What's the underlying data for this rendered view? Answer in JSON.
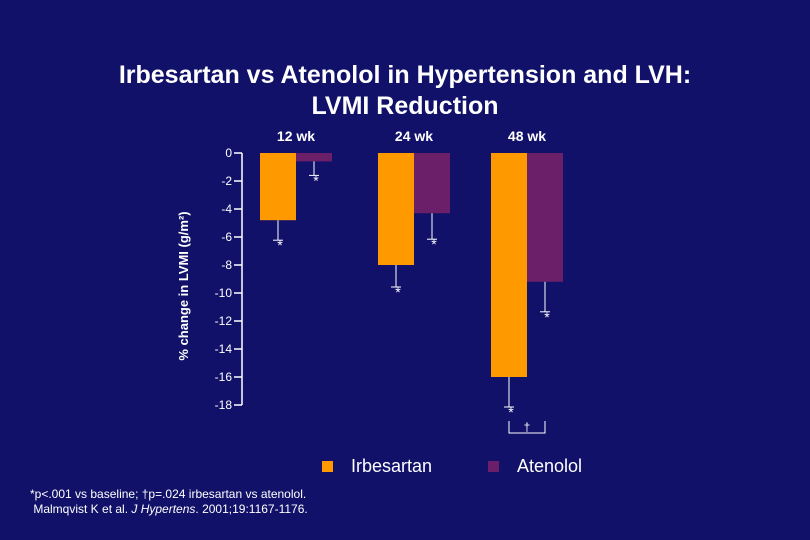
{
  "slide": {
    "title_line1": "Irbesartan vs Atenolol in Hypertension and LVH:",
    "title_line2": "LVMI Reduction"
  },
  "chart_data": {
    "type": "bar",
    "categories": [
      "12 wk",
      "24 wk",
      "48 wk"
    ],
    "series": [
      {
        "name": "Irbesartan",
        "color": "#ff9900",
        "values": [
          -4.8,
          -8.0,
          -16.0
        ]
      },
      {
        "name": "Atenolol",
        "color": "#6b1f68",
        "values": [
          -0.6,
          -4.3,
          -9.2
        ]
      }
    ],
    "significance": [
      [
        "*",
        "*"
      ],
      [
        "*",
        "*"
      ],
      [
        "*",
        "*"
      ]
    ],
    "comparison_marker": {
      "category": "48 wk",
      "symbol": "†"
    },
    "ylabel": "% change in LVMI (g/m²)",
    "xlabel": "",
    "ylim": [
      -18,
      0
    ],
    "yticks": [
      0,
      -2,
      -4,
      -6,
      -8,
      -10,
      -12,
      -14,
      -16,
      -18
    ],
    "legend_position": "bottom",
    "grid": false
  },
  "footnote": {
    "line1": "*p<.001 vs baseline; †p=.024 irbesartan vs atenolol.",
    "line2_authors": "Malmqvist K et al. ",
    "line2_journal": "J Hypertens",
    "line2_rest": ". 2001;19:1167-1176."
  },
  "colors": {
    "background": "#11116a",
    "irbesartan": "#ff9900",
    "atenolol": "#6b1f68",
    "axis": "#ffffff"
  }
}
